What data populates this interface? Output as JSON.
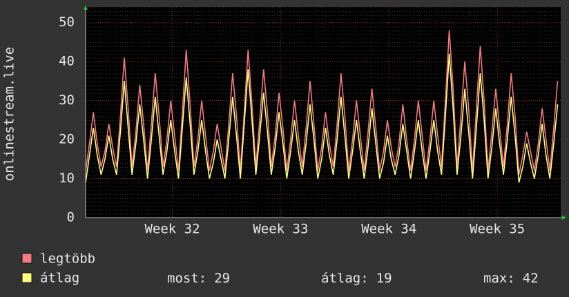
{
  "chart_data": {
    "type": "line",
    "y_label": "onlinestream.live",
    "x": [
      0,
      0.25,
      0.5,
      0.75,
      1,
      1.25,
      1.5,
      1.75,
      2,
      2.25,
      2.5,
      2.75,
      3,
      3.25,
      3.5,
      3.75,
      4,
      4.25,
      4.5,
      4.75,
      5,
      5.25,
      5.5,
      5.75,
      6,
      6.25,
      6.5,
      6.75,
      7,
      7.25,
      7.5,
      7.75,
      8,
      8.25,
      8.5,
      8.75,
      9,
      9.25,
      9.5,
      9.75,
      10,
      10.25,
      10.5,
      10.75,
      11,
      11.25,
      11.5,
      11.75,
      12,
      12.25,
      12.5,
      12.75,
      13,
      13.25,
      13.5,
      13.75,
      14,
      14.25,
      14.5,
      14.75,
      15,
      15.25,
      15.5,
      15.75,
      16,
      16.25,
      16.5,
      16.75,
      17,
      17.25,
      17.5,
      17.75,
      18,
      18.25,
      18.5,
      18.75,
      19,
      19.25,
      19.5,
      19.75,
      20,
      20.25,
      20.5,
      20.75,
      21,
      21.25,
      21.5,
      21.75,
      22,
      22.25,
      22.5,
      22.75,
      23,
      23.25,
      23.5,
      23.75,
      24,
      24.25,
      24.5,
      24.75,
      25,
      25.25,
      25.5,
      25.75,
      26,
      26.25,
      26.5,
      26.75,
      27,
      27.25,
      27.5,
      27.75,
      28,
      28.25,
      28.5,
      28.75,
      29,
      29.25,
      29.5,
      29.75,
      30,
      30.25,
      30.5
    ],
    "series": [
      {
        "name": "legtöbb",
        "color": "#f47a80",
        "values": [
          12,
          19,
          27,
          19,
          13,
          17,
          24,
          18,
          13,
          26,
          41,
          28,
          13,
          22,
          34,
          24,
          12,
          24,
          37,
          26,
          13,
          20,
          30,
          21,
          12,
          27,
          43,
          29,
          13,
          20,
          30,
          21,
          12,
          17,
          24,
          18,
          12,
          24,
          37,
          26,
          12,
          27,
          43,
          29,
          13,
          25,
          38,
          27,
          13,
          21,
          32,
          23,
          12,
          20,
          30,
          21,
          13,
          23,
          35,
          24,
          12,
          18,
          27,
          19,
          13,
          24,
          37,
          26,
          12,
          20,
          30,
          21,
          12,
          22,
          33,
          23,
          12,
          17,
          25,
          18,
          13,
          19,
          29,
          20,
          12,
          20,
          30,
          21,
          12,
          20,
          30,
          21,
          13,
          30,
          48,
          33,
          13,
          26,
          40,
          28,
          12,
          28,
          44,
          30,
          12,
          22,
          33,
          23,
          13,
          24,
          37,
          26,
          11,
          16,
          22,
          17,
          12,
          19,
          28,
          20,
          12,
          23,
          35
        ]
      },
      {
        "name": "átlag",
        "color": "#ffff7a",
        "values": [
          9,
          16,
          23,
          16,
          11,
          15,
          21,
          15,
          11,
          22,
          35,
          23,
          11,
          19,
          29,
          20,
          10,
          20,
          31,
          21,
          11,
          17,
          25,
          17,
          10,
          23,
          36,
          24,
          11,
          17,
          25,
          17,
          10,
          14,
          20,
          15,
          10,
          20,
          31,
          21,
          10,
          24,
          38,
          25,
          11,
          21,
          32,
          22,
          11,
          18,
          27,
          19,
          10,
          17,
          25,
          17,
          11,
          19,
          29,
          20,
          10,
          15,
          23,
          16,
          11,
          20,
          31,
          21,
          10,
          17,
          25,
          17,
          10,
          18,
          28,
          19,
          10,
          14,
          21,
          15,
          11,
          16,
          24,
          17,
          10,
          17,
          25,
          17,
          10,
          17,
          25,
          17,
          11,
          26,
          42,
          28,
          11,
          21,
          33,
          22,
          10,
          23,
          37,
          25,
          10,
          18,
          28,
          19,
          11,
          20,
          31,
          21,
          9,
          13,
          19,
          14,
          10,
          16,
          24,
          16,
          10,
          19,
          29
        ]
      }
    ],
    "xlim": [
      0,
      30.7
    ],
    "xticks": [
      {
        "value": 5.6,
        "label": "Week 32"
      },
      {
        "value": 12.6,
        "label": "Week 33"
      },
      {
        "value": 19.6,
        "label": "Week 34"
      },
      {
        "value": 26.6,
        "label": "Week 35"
      }
    ],
    "ylim": [
      0,
      54
    ],
    "yticks": [
      0,
      10,
      20,
      30,
      40,
      50
    ],
    "grid": true,
    "stats": [
      {
        "label": "most:",
        "value": 29
      },
      {
        "label": "átlag:",
        "value": 19
      },
      {
        "label": "max:",
        "value": 42
      }
    ]
  }
}
